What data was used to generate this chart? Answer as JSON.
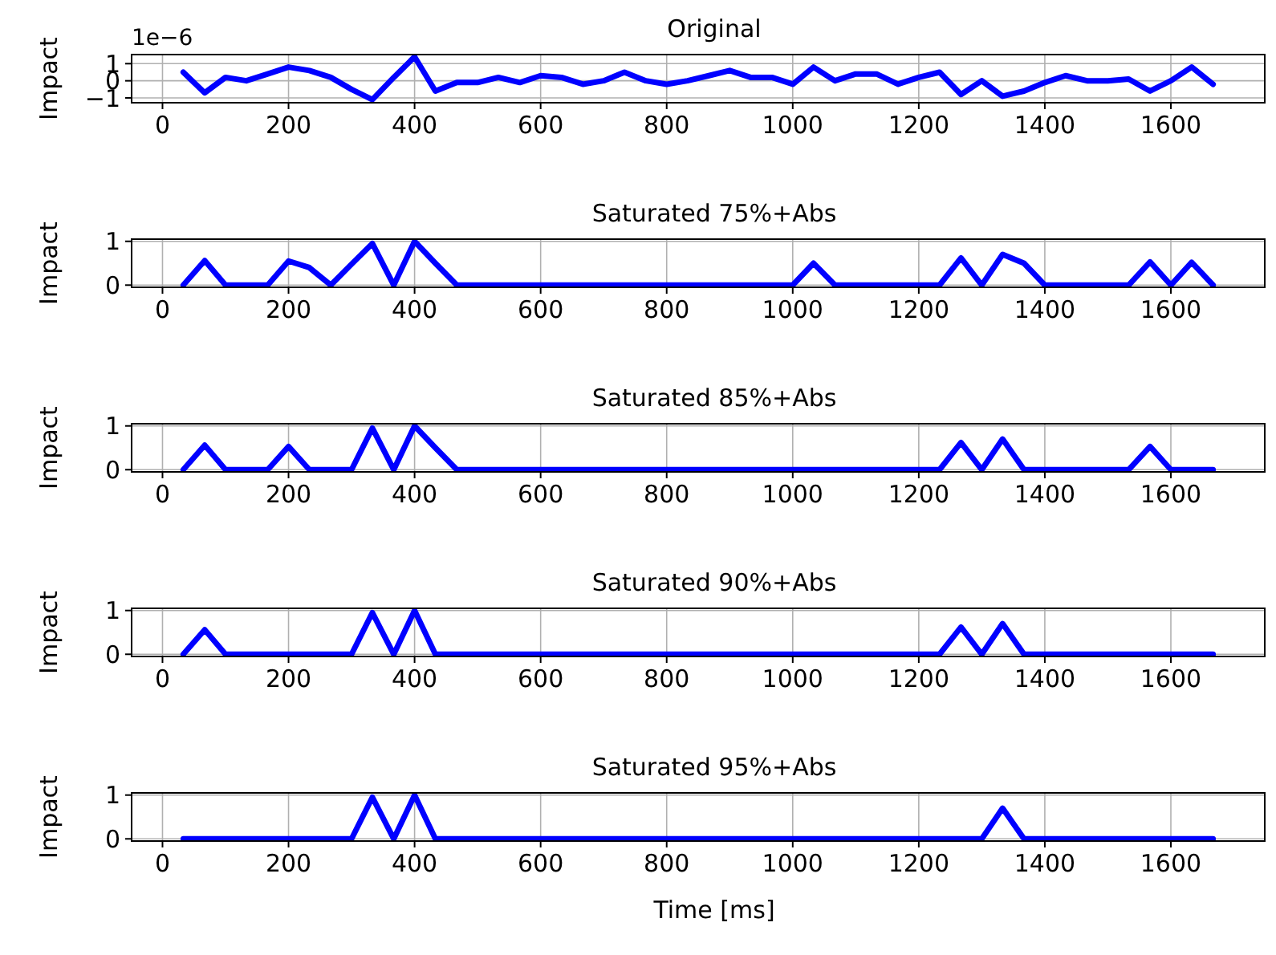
{
  "chart_data": [
    {
      "type": "line",
      "title": "Original",
      "ylabel": "Impact",
      "annotations": [
        "1e−6"
      ],
      "color": "#0000ff",
      "grid": true,
      "xlim": [
        -49,
        1749
      ],
      "xticks": [
        0,
        200,
        400,
        600,
        800,
        1000,
        1200,
        1400,
        1600
      ],
      "ylim": [
        -1.28,
        1.53
      ],
      "yticks": [
        {
          "value": -1,
          "label": "−1"
        },
        {
          "value": 0,
          "label": "0"
        },
        {
          "value": 1,
          "label": "1"
        }
      ],
      "x": [
        33,
        67,
        100,
        133,
        167,
        200,
        233,
        267,
        300,
        333,
        367,
        400,
        433,
        467,
        500,
        533,
        567,
        600,
        633,
        667,
        700,
        733,
        767,
        800,
        833,
        867,
        900,
        933,
        967,
        1000,
        1033,
        1067,
        1100,
        1133,
        1167,
        1200,
        1233,
        1267,
        1300,
        1333,
        1367,
        1400,
        1433,
        1467,
        1500,
        1533,
        1567,
        1600,
        1633,
        1667
      ],
      "values": [
        0.5,
        -0.7,
        0.2,
        0,
        0.4,
        0.8,
        0.6,
        0.2,
        -0.5,
        -1.1,
        0.2,
        1.4,
        -0.6,
        -0.1,
        -0.1,
        0.2,
        -0.1,
        0.3,
        0.2,
        -0.2,
        0,
        0.5,
        0,
        -0.2,
        0,
        0.3,
        0.6,
        0.2,
        0.2,
        -0.2,
        0.8,
        0,
        0.4,
        0.4,
        -0.2,
        0.2,
        0.5,
        -0.8,
        0,
        -0.9,
        -0.6,
        -0.1,
        0.3,
        0,
        0,
        0.1,
        -0.6,
        0,
        0.8,
        -0.2
      ]
    },
    {
      "type": "line",
      "title": "Saturated 75%+Abs",
      "ylabel": "Impact",
      "color": "#0000ff",
      "grid": true,
      "xlim": [
        -49,
        1749
      ],
      "xticks": [
        0,
        200,
        400,
        600,
        800,
        1000,
        1200,
        1400,
        1600
      ],
      "ylim": [
        -0.05,
        1.05
      ],
      "yticks": [
        {
          "value": 0,
          "label": "0"
        },
        {
          "value": 1,
          "label": "1"
        }
      ],
      "x": [
        33,
        67,
        100,
        133,
        167,
        200,
        233,
        267,
        300,
        333,
        367,
        400,
        433,
        467,
        500,
        533,
        567,
        600,
        633,
        667,
        700,
        733,
        767,
        800,
        833,
        867,
        900,
        933,
        967,
        1000,
        1033,
        1067,
        1100,
        1133,
        1167,
        1200,
        1233,
        1267,
        1300,
        1333,
        1367,
        1400,
        1433,
        1467,
        1500,
        1533,
        1567,
        1600,
        1633,
        1667
      ],
      "values": [
        0,
        0.56,
        0,
        0,
        0,
        0.55,
        0.4,
        0,
        0.48,
        0.95,
        0,
        1,
        0.5,
        0,
        0,
        0,
        0,
        0,
        0,
        0,
        0,
        0,
        0,
        0,
        0,
        0,
        0,
        0,
        0,
        0,
        0.5,
        0,
        0,
        0,
        0,
        0,
        0,
        0.62,
        0,
        0.7,
        0.5,
        0,
        0,
        0,
        0,
        0,
        0.53,
        0,
        0.52,
        0
      ]
    },
    {
      "type": "line",
      "title": "Saturated 85%+Abs",
      "ylabel": "Impact",
      "color": "#0000ff",
      "grid": true,
      "xlim": [
        -49,
        1749
      ],
      "xticks": [
        0,
        200,
        400,
        600,
        800,
        1000,
        1200,
        1400,
        1600
      ],
      "ylim": [
        -0.05,
        1.05
      ],
      "yticks": [
        {
          "value": 0,
          "label": "0"
        },
        {
          "value": 1,
          "label": "1"
        }
      ],
      "x": [
        33,
        67,
        100,
        133,
        167,
        200,
        233,
        267,
        300,
        333,
        367,
        400,
        433,
        467,
        500,
        533,
        567,
        600,
        633,
        667,
        700,
        733,
        767,
        800,
        833,
        867,
        900,
        933,
        967,
        1000,
        1033,
        1067,
        1100,
        1133,
        1167,
        1200,
        1233,
        1267,
        1300,
        1333,
        1367,
        1400,
        1433,
        1467,
        1500,
        1533,
        1567,
        1600,
        1633,
        1667
      ],
      "values": [
        0,
        0.56,
        0,
        0,
        0,
        0.53,
        0,
        0,
        0,
        0.95,
        0,
        1,
        0.5,
        0,
        0,
        0,
        0,
        0,
        0,
        0,
        0,
        0,
        0,
        0,
        0,
        0,
        0,
        0,
        0,
        0,
        0,
        0,
        0,
        0,
        0,
        0,
        0,
        0.62,
        0,
        0.7,
        0,
        0,
        0,
        0,
        0,
        0,
        0.53,
        0,
        0,
        0
      ]
    },
    {
      "type": "line",
      "title": "Saturated 90%+Abs",
      "ylabel": "Impact",
      "color": "#0000ff",
      "grid": true,
      "xlim": [
        -49,
        1749
      ],
      "xticks": [
        0,
        200,
        400,
        600,
        800,
        1000,
        1200,
        1400,
        1600
      ],
      "ylim": [
        -0.05,
        1.05
      ],
      "yticks": [
        {
          "value": 0,
          "label": "0"
        },
        {
          "value": 1,
          "label": "1"
        }
      ],
      "x": [
        33,
        67,
        100,
        133,
        167,
        200,
        233,
        267,
        300,
        333,
        367,
        400,
        433,
        467,
        500,
        533,
        567,
        600,
        633,
        667,
        700,
        733,
        767,
        800,
        833,
        867,
        900,
        933,
        967,
        1000,
        1033,
        1067,
        1100,
        1133,
        1167,
        1200,
        1233,
        1267,
        1300,
        1333,
        1367,
        1400,
        1433,
        1467,
        1500,
        1533,
        1567,
        1600,
        1633,
        1667
      ],
      "values": [
        0,
        0.56,
        0,
        0,
        0,
        0,
        0,
        0,
        0,
        0.95,
        0,
        1,
        0,
        0,
        0,
        0,
        0,
        0,
        0,
        0,
        0,
        0,
        0,
        0,
        0,
        0,
        0,
        0,
        0,
        0,
        0,
        0,
        0,
        0,
        0,
        0,
        0,
        0.62,
        0,
        0.7,
        0,
        0,
        0,
        0,
        0,
        0,
        0,
        0,
        0,
        0
      ]
    },
    {
      "type": "line",
      "title": "Saturated 95%+Abs",
      "ylabel": "Impact",
      "xlabel": "Time [ms]",
      "color": "#0000ff",
      "grid": true,
      "xlim": [
        -49,
        1749
      ],
      "xticks": [
        0,
        200,
        400,
        600,
        800,
        1000,
        1200,
        1400,
        1600
      ],
      "ylim": [
        -0.05,
        1.05
      ],
      "yticks": [
        {
          "value": 0,
          "label": "0"
        },
        {
          "value": 1,
          "label": "1"
        }
      ],
      "x": [
        33,
        67,
        100,
        133,
        167,
        200,
        233,
        267,
        300,
        333,
        367,
        400,
        433,
        467,
        500,
        533,
        567,
        600,
        633,
        667,
        700,
        733,
        767,
        800,
        833,
        867,
        900,
        933,
        967,
        1000,
        1033,
        1067,
        1100,
        1133,
        1167,
        1200,
        1233,
        1267,
        1300,
        1333,
        1367,
        1400,
        1433,
        1467,
        1500,
        1533,
        1567,
        1600,
        1633,
        1667
      ],
      "values": [
        0,
        0,
        0,
        0,
        0,
        0,
        0,
        0,
        0,
        0.95,
        0,
        1,
        0,
        0,
        0,
        0,
        0,
        0,
        0,
        0,
        0,
        0,
        0,
        0,
        0,
        0,
        0,
        0,
        0,
        0,
        0,
        0,
        0,
        0,
        0,
        0,
        0,
        0,
        0,
        0.7,
        0,
        0,
        0,
        0,
        0,
        0,
        0,
        0,
        0,
        0
      ]
    }
  ]
}
